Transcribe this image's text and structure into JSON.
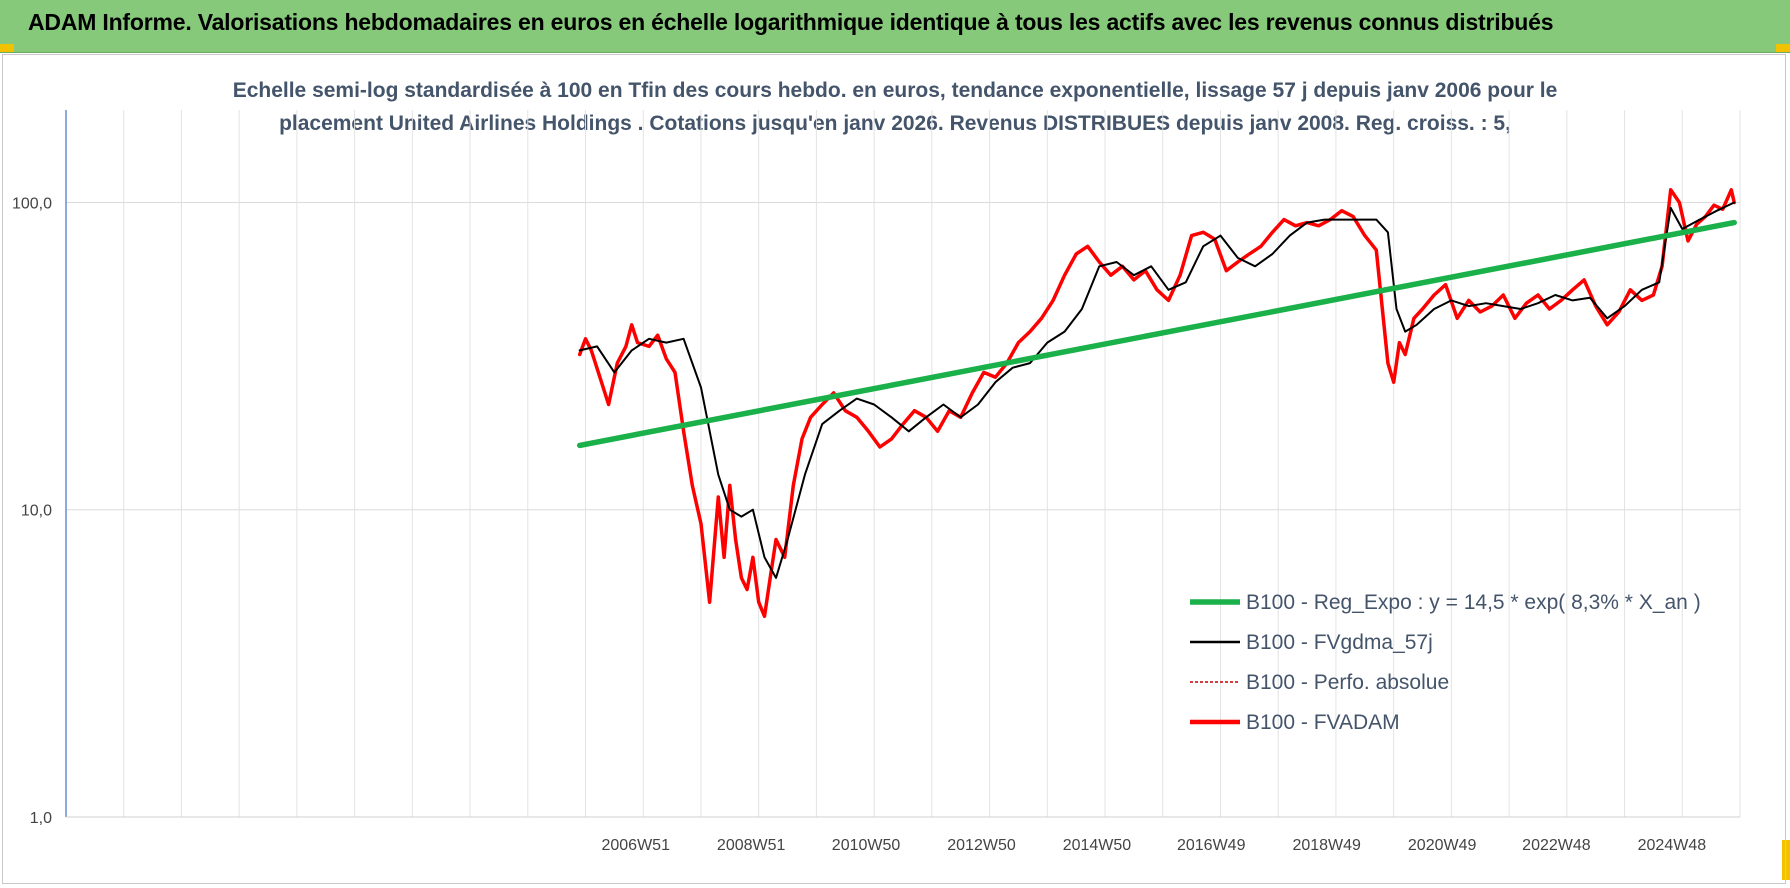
{
  "banner": {
    "title": "ADAM Informe. Valorisations hebdomadaires en euros en échelle logarithmique identique à tous les actifs avec les revenus connus distribués",
    "color": "#86c97a"
  },
  "chart_data": {
    "type": "line",
    "title_lines": [
      "Echelle semi-log standardisée à 100 en Tfin des cours hebdo. en euros, tendance exponentielle, lissage 57 j depuis janv 2006 pour le",
      "placement United Airlines Holdings . Cotations jusqu'en janv 2026. Revenus DISTRIBUES depuis janv 2008. Reg. croiss. : 5,"
    ],
    "y_scale": "log",
    "ylim": [
      1,
      200
    ],
    "y_ticks": [
      {
        "value": 1,
        "label": "1,0"
      },
      {
        "value": 10,
        "label": "10,0"
      },
      {
        "value": 100,
        "label": "100,0"
      }
    ],
    "xlim": [
      1997.1,
      2026.1
    ],
    "x_ticks": [
      {
        "value": 2006.97,
        "label": "2006W51"
      },
      {
        "value": 2008.97,
        "label": "2008W51"
      },
      {
        "value": 2010.96,
        "label": "2010W50"
      },
      {
        "value": 2012.96,
        "label": "2012W50"
      },
      {
        "value": 2014.96,
        "label": "2014W50"
      },
      {
        "value": 2016.94,
        "label": "2016W49"
      },
      {
        "value": 2018.94,
        "label": "2018W49"
      },
      {
        "value": 2020.94,
        "label": "2020W49"
      },
      {
        "value": 2022.92,
        "label": "2022W48"
      },
      {
        "value": 2024.92,
        "label": "2024W48"
      }
    ],
    "grid": true,
    "legend_position": "bottom-right",
    "series": [
      {
        "name": "B100 - Reg_Expo : y = 14,5 * exp( 8,3% *  X_an )",
        "color": "#1ab04a",
        "x": [
          2006.0,
          2026.0
        ],
        "y": [
          16.2,
          86
        ]
      },
      {
        "name": "B100 - FVgdma_57j",
        "color": "#000000",
        "x": [
          2006.0,
          2006.3,
          2006.6,
          2006.9,
          2007.2,
          2007.5,
          2007.8,
          2008.1,
          2008.4,
          2008.6,
          2008.8,
          2009.0,
          2009.2,
          2009.4,
          2009.6,
          2009.9,
          2010.2,
          2010.5,
          2010.8,
          2011.1,
          2011.4,
          2011.7,
          2012.0,
          2012.3,
          2012.6,
          2012.9,
          2013.2,
          2013.5,
          2013.8,
          2014.1,
          2014.4,
          2014.7,
          2015.0,
          2015.3,
          2015.6,
          2015.9,
          2016.2,
          2016.5,
          2016.8,
          2017.1,
          2017.4,
          2017.7,
          2018.0,
          2018.3,
          2018.6,
          2018.9,
          2019.2,
          2019.5,
          2019.8,
          2020.0,
          2020.15,
          2020.3,
          2020.5,
          2020.8,
          2021.1,
          2021.4,
          2021.7,
          2022.0,
          2022.3,
          2022.6,
          2022.9,
          2023.2,
          2023.5,
          2023.8,
          2024.1,
          2024.4,
          2024.7,
          2024.9,
          2025.1,
          2025.4,
          2025.7,
          2026.0
        ],
        "y": [
          33,
          34,
          28,
          33,
          36,
          35,
          36,
          25,
          13,
          10,
          9.5,
          10,
          7,
          6,
          8,
          13,
          19,
          21,
          23,
          22,
          20,
          18,
          20,
          22,
          20,
          22,
          26,
          29,
          30,
          35,
          38,
          45,
          62,
          64,
          58,
          62,
          52,
          55,
          72,
          78,
          66,
          62,
          68,
          78,
          86,
          88,
          88,
          88,
          88,
          80,
          45,
          38,
          40,
          45,
          48,
          46,
          47,
          46,
          45,
          47,
          50,
          48,
          49,
          42,
          46,
          52,
          55,
          96,
          82,
          88,
          94,
          100
        ]
      },
      {
        "name": "B100 - Perfo. absolue",
        "color": "#c00000",
        "x": [],
        "y": []
      },
      {
        "name": "B100 - FVADAM",
        "color": "#ff0000",
        "x": [
          2006.0,
          2006.1,
          2006.2,
          2006.35,
          2006.5,
          2006.65,
          2006.8,
          2006.9,
          2007.0,
          2007.2,
          2007.35,
          2007.5,
          2007.65,
          2007.8,
          2007.95,
          2008.1,
          2008.25,
          2008.4,
          2008.5,
          2008.6,
          2008.7,
          2008.8,
          2008.9,
          2009.0,
          2009.1,
          2009.2,
          2009.3,
          2009.4,
          2009.55,
          2009.7,
          2009.85,
          2010.0,
          2010.2,
          2010.4,
          2010.6,
          2010.8,
          2011.0,
          2011.2,
          2011.4,
          2011.6,
          2011.8,
          2012.0,
          2012.2,
          2012.4,
          2012.6,
          2012.8,
          2013.0,
          2013.2,
          2013.4,
          2013.6,
          2013.8,
          2014.0,
          2014.2,
          2014.4,
          2014.6,
          2014.8,
          2015.0,
          2015.2,
          2015.4,
          2015.6,
          2015.8,
          2016.0,
          2016.2,
          2016.4,
          2016.6,
          2016.8,
          2017.0,
          2017.2,
          2017.4,
          2017.6,
          2017.8,
          2018.0,
          2018.2,
          2018.4,
          2018.6,
          2018.8,
          2019.0,
          2019.2,
          2019.4,
          2019.6,
          2019.8,
          2020.0,
          2020.1,
          2020.2,
          2020.3,
          2020.45,
          2020.6,
          2020.8,
          2021.0,
          2021.2,
          2021.4,
          2021.6,
          2021.8,
          2022.0,
          2022.2,
          2022.4,
          2022.6,
          2022.8,
          2023.0,
          2023.2,
          2023.4,
          2023.6,
          2023.8,
          2024.0,
          2024.2,
          2024.4,
          2024.6,
          2024.75,
          2024.9,
          2025.05,
          2025.2,
          2025.35,
          2025.5,
          2025.65,
          2025.8,
          2025.95,
          2026.0
        ],
        "y": [
          32,
          36,
          33,
          27,
          22,
          30,
          34,
          40,
          35,
          34,
          37,
          31,
          28,
          18,
          12,
          9,
          5,
          11,
          7,
          12,
          8,
          6,
          5.5,
          7,
          5,
          4.5,
          6,
          8,
          7,
          12,
          17,
          20,
          22,
          24,
          21,
          20,
          18,
          16,
          17,
          19,
          21,
          20,
          18,
          21,
          20,
          24,
          28,
          27,
          30,
          35,
          38,
          42,
          48,
          58,
          68,
          72,
          64,
          58,
          62,
          56,
          60,
          52,
          48,
          58,
          78,
          80,
          76,
          60,
          64,
          68,
          72,
          80,
          88,
          84,
          86,
          84,
          88,
          94,
          90,
          78,
          70,
          30,
          26,
          35,
          32,
          42,
          45,
          50,
          54,
          42,
          48,
          44,
          46,
          50,
          42,
          47,
          50,
          45,
          48,
          52,
          56,
          46,
          40,
          44,
          52,
          48,
          50,
          62,
          110,
          100,
          75,
          85,
          90,
          98,
          95,
          110,
          100
        ]
      }
    ]
  }
}
